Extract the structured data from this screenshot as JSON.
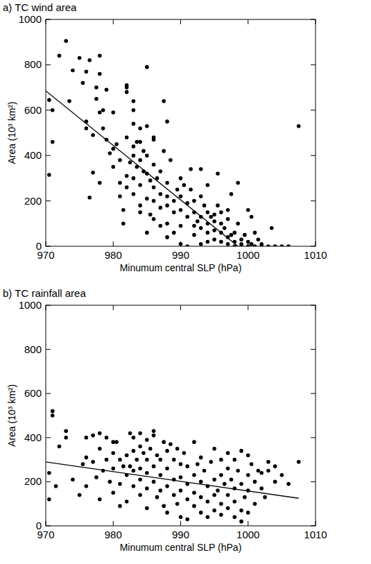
{
  "chart_data": [
    {
      "type": "scatter",
      "title": "a) TC wind area",
      "x_label": "Minumum central SLP (hPa)",
      "y_label": "Area (10³ km²)",
      "xlim": [
        970,
        1010
      ],
      "xticks": [
        970,
        980,
        990,
        1000,
        1010
      ],
      "ylim": [
        0,
        1000
      ],
      "yticks": [
        0,
        200,
        400,
        600,
        800,
        1000
      ],
      "series": [
        {
          "type": "scatter",
          "color": "#000000",
          "marker": "circle",
          "x": [
            970.5,
            970.5,
            971,
            971,
            972,
            973,
            973.5,
            974,
            975,
            975.5,
            976,
            976,
            976,
            976.5,
            976.5,
            977,
            977,
            977.5,
            977.5,
            978,
            978,
            978,
            978,
            978.5,
            978.5,
            979,
            979,
            979.5,
            980,
            980,
            980,
            980.5,
            981,
            981,
            981,
            981.5,
            981.5,
            982,
            982,
            982,
            982,
            982,
            982,
            982.5,
            983,
            983,
            983,
            983,
            983,
            983,
            983,
            983.5,
            983.5,
            984,
            984,
            984,
            984,
            984,
            984,
            984.5,
            984.5,
            985,
            985,
            985,
            985,
            985,
            985,
            985.5,
            985.5,
            986,
            986,
            986,
            986,
            986,
            986,
            986.5,
            987,
            987,
            987,
            987,
            987.5,
            987.5,
            988,
            988,
            988,
            988,
            988,
            988,
            988.5,
            989,
            989,
            989,
            989.5,
            990,
            990,
            990,
            990,
            990,
            990.5,
            991,
            991,
            991,
            991.5,
            991.5,
            992,
            992,
            992,
            992,
            992.5,
            993,
            993,
            993,
            993,
            993,
            993.5,
            994,
            994,
            994,
            994,
            994,
            994.5,
            995,
            995,
            995,
            995,
            995.5,
            995.5,
            996,
            996,
            996,
            996,
            996.5,
            997,
            997,
            997,
            997,
            997.5,
            997.5,
            998,
            998,
            998,
            998.5,
            998.5,
            999,
            999,
            999,
            999.5,
            1000,
            1000,
            1000,
            1000.5,
            1000.5,
            1001,
            1001,
            1001.5,
            1002,
            1002,
            1003,
            1003.5,
            1004,
            1005,
            1006,
            1007.5
          ],
          "values": [
            315,
            645,
            600,
            460,
            840,
            905,
            640,
            775,
            830,
            720,
            770,
            550,
            520,
            215,
            820,
            325,
            490,
            700,
            650,
            840,
            760,
            590,
            280,
            600,
            520,
            690,
            470,
            410,
            350,
            430,
            590,
            450,
            380,
            280,
            220,
            160,
            100,
            710,
            700,
            680,
            480,
            310,
            260,
            370,
            640,
            600,
            540,
            440,
            400,
            300,
            230,
            460,
            350,
            520,
            460,
            380,
            270,
            180,
            150,
            420,
            330,
            790,
            530,
            400,
            320,
            210,
            60,
            290,
            140,
            480,
            470,
            360,
            260,
            200,
            120,
            300,
            330,
            230,
            170,
            90,
            640,
            420,
            550,
            280,
            220,
            180,
            100,
            40,
            380,
            200,
            150,
            60,
            250,
            300,
            220,
            160,
            90,
            10,
            270,
            190,
            130,
            0,
            340,
            250,
            200,
            150,
            90,
            50,
            110,
            340,
            220,
            130,
            80,
            10,
            180,
            270,
            150,
            100,
            60,
            20,
            130,
            140,
            110,
            70,
            30,
            320,
            180,
            150,
            100,
            60,
            20,
            80,
            160,
            120,
            40,
            10,
            230,
            50,
            60,
            20,
            0,
            280,
            100,
            30,
            10,
            0,
            50,
            160,
            20,
            0,
            130,
            10,
            60,
            0,
            30,
            10,
            0,
            0,
            80,
            0,
            0,
            0,
            530
          ]
        },
        {
          "type": "line",
          "color": "#000000",
          "line_style": "solid",
          "x": [
            970,
            998.5
          ],
          "values": [
            685,
            0
          ]
        }
      ]
    },
    {
      "type": "scatter",
      "title": "b) TC rainfall area",
      "x_label": "Minumum central SLP (hPa)",
      "y_label": "Area (10³ km²)",
      "xlim": [
        970,
        1010
      ],
      "xticks": [
        970,
        980,
        990,
        1000,
        1010
      ],
      "ylim": [
        0,
        1000
      ],
      "yticks": [
        0,
        200,
        400,
        600,
        800,
        1000
      ],
      "series": [
        {
          "type": "scatter",
          "color": "#000000",
          "marker": "circle",
          "x": [
            970.5,
            970.5,
            971,
            971,
            971.5,
            972,
            973,
            973,
            974,
            975,
            975.5,
            976,
            976,
            976,
            977,
            977,
            977.5,
            978,
            978,
            978,
            978.5,
            979,
            979,
            979.5,
            980,
            980,
            980,
            980,
            980.5,
            981,
            981,
            981,
            981.5,
            982,
            982,
            982,
            982.5,
            982.5,
            983,
            983,
            983,
            983,
            983.5,
            984,
            984,
            984,
            984,
            984,
            984.5,
            985,
            985,
            985,
            985,
            985,
            985.5,
            986,
            986,
            986,
            986,
            986.5,
            986.5,
            987,
            987,
            987,
            987.5,
            987.5,
            988,
            988,
            988,
            988,
            988.5,
            989,
            989,
            989,
            989.5,
            989.5,
            990,
            990,
            990,
            990,
            990.5,
            991,
            991,
            991,
            991,
            992,
            992,
            992,
            992,
            992.5,
            993,
            993,
            993,
            993,
            993.5,
            994,
            994,
            994,
            994.5,
            995,
            995,
            995,
            995,
            995.5,
            996,
            996,
            996,
            996,
            996.5,
            997,
            997,
            997,
            997,
            997.5,
            998,
            998,
            998,
            998,
            998.5,
            999,
            999,
            999,
            999,
            999.5,
            1000,
            1000,
            1000,
            1000,
            1000.5,
            1001,
            1001,
            1001.5,
            1002,
            1002,
            1002.5,
            1003,
            1003,
            1004,
            1004,
            1005,
            1006,
            1007.5
          ],
          "values": [
            240,
            120,
            500,
            520,
            180,
            360,
            430,
            400,
            210,
            140,
            280,
            400,
            310,
            180,
            410,
            290,
            220,
            420,
            350,
            120,
            250,
            400,
            300,
            200,
            380,
            330,
            260,
            150,
            380,
            300,
            190,
            90,
            270,
            320,
            230,
            110,
            420,
            270,
            400,
            340,
            250,
            180,
            300,
            420,
            360,
            260,
            210,
            140,
            330,
            390,
            300,
            240,
            170,
            80,
            350,
            430,
            410,
            270,
            200,
            320,
            130,
            300,
            230,
            160,
            380,
            90,
            340,
            260,
            180,
            60,
            370,
            300,
            210,
            140,
            350,
            100,
            280,
            220,
            160,
            40,
            330,
            270,
            190,
            120,
            30,
            380,
            230,
            150,
            90,
            280,
            310,
            200,
            130,
            60,
            250,
            180,
            110,
            40,
            290,
            350,
            210,
            140,
            70,
            160,
            300,
            230,
            100,
            50,
            190,
            330,
            260,
            140,
            80,
            210,
            300,
            170,
            110,
            40,
            250,
            340,
            190,
            70,
            20,
            130,
            320,
            230,
            160,
            60,
            280,
            200,
            100,
            250,
            240,
            170,
            130,
            290,
            250,
            270,
            200,
            230,
            190,
            290
          ]
        },
        {
          "type": "line",
          "color": "#000000",
          "line_style": "solid",
          "x": [
            970,
            1007.5
          ],
          "values": [
            290,
            125
          ]
        }
      ]
    }
  ]
}
